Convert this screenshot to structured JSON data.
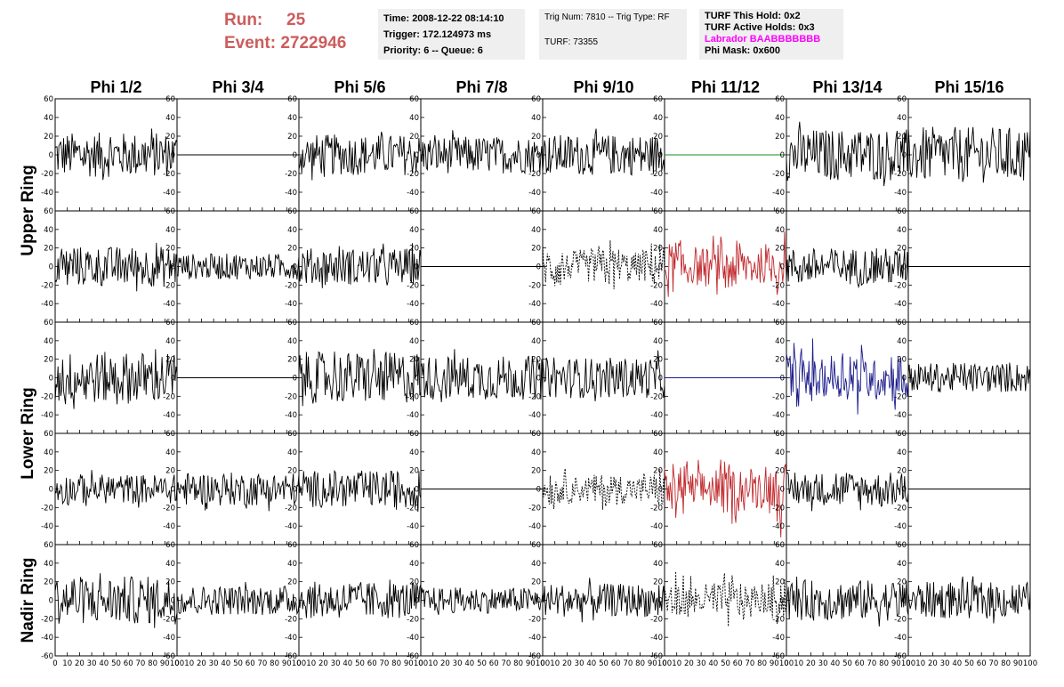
{
  "header": {
    "run_label": "Run:",
    "run_value": "25",
    "event_label": "Event:",
    "event_value": "2722946",
    "time": "Time: 2008-12-22 08:14:10",
    "trigger": "Trigger: 172.124973 ms",
    "priority_queue": "Priority: 6 -- Queue: 6",
    "trig_num_type": "Trig Num: 7810 -- Trig Type: RF",
    "turf": "TURF: 73355",
    "turf_this_hold": "TURF This Hold: 0x2",
    "turf_active_holds": "TURF Active Holds: 0x3",
    "labrador": "Labrador BAABBBBBBB",
    "phi_mask": "Phi Mask: 0x600"
  },
  "colors": {
    "run_text": "#cd5c5c",
    "labrador_text": "#ff00ff",
    "trace_black": "#000000",
    "trace_red": "#c0282c",
    "trace_blue": "#1c1c8c",
    "trace_green": "#1a8a1a"
  },
  "chart_data": {
    "type": "line",
    "columns": [
      "Phi 1/2",
      "Phi 3/4",
      "Phi 5/6",
      "Phi 7/8",
      "Phi 9/10",
      "Phi 11/12",
      "Phi 13/14",
      "Phi 15/16"
    ],
    "ring_labels": [
      {
        "name": "Upper Ring",
        "rows": [
          0,
          1
        ]
      },
      {
        "name": "Lower Ring",
        "rows": [
          2,
          3
        ]
      },
      {
        "name": "Nadir Ring",
        "rows": [
          4
        ]
      }
    ],
    "ylim": [
      -60,
      60
    ],
    "yticks": [
      -60,
      -40,
      -20,
      0,
      20,
      40,
      60
    ],
    "xlim": [
      0,
      100
    ],
    "xticks": [
      0,
      10,
      20,
      30,
      40,
      50,
      60,
      70,
      80,
      90,
      100
    ],
    "panels": [
      [
        {
          "style": "noise",
          "color": "black",
          "amplitude": 24
        },
        {
          "style": "flat",
          "color": "black",
          "amplitude": 0
        },
        {
          "style": "noise",
          "color": "black",
          "amplitude": 22
        },
        {
          "style": "noise",
          "color": "black",
          "amplitude": 20
        },
        {
          "style": "noise",
          "color": "black",
          "amplitude": 22
        },
        {
          "style": "flat",
          "color": "green",
          "amplitude": 0
        },
        {
          "style": "noise",
          "color": "black",
          "amplitude": 28
        },
        {
          "style": "noise",
          "color": "black",
          "amplitude": 30
        }
      ],
      [
        {
          "style": "noise",
          "color": "black",
          "amplitude": 22
        },
        {
          "style": "noise",
          "color": "black",
          "amplitude": 14
        },
        {
          "style": "noise",
          "color": "black",
          "amplitude": 20
        },
        {
          "style": "flat",
          "color": "black",
          "amplitude": 0
        },
        {
          "style": "dashed-pulse",
          "color": "black",
          "amplitude": 32
        },
        {
          "style": "pulse",
          "color": "red",
          "amplitude": 40
        },
        {
          "style": "noise",
          "color": "black",
          "amplitude": 20
        },
        {
          "style": "flat",
          "color": "black",
          "amplitude": 0
        }
      ],
      [
        {
          "style": "noise",
          "color": "black",
          "amplitude": 28
        },
        {
          "style": "flat",
          "color": "black",
          "amplitude": 0
        },
        {
          "style": "noise",
          "color": "black",
          "amplitude": 28
        },
        {
          "style": "noise",
          "color": "black",
          "amplitude": 24
        },
        {
          "style": "noise",
          "color": "black",
          "amplitude": 22
        },
        {
          "style": "flat",
          "color": "blue",
          "amplitude": 0
        },
        {
          "style": "pulse",
          "color": "blue",
          "amplitude": 44
        },
        {
          "style": "noise",
          "color": "black",
          "amplitude": 16
        }
      ],
      [
        {
          "style": "noise",
          "color": "black",
          "amplitude": 16
        },
        {
          "style": "noise",
          "color": "black",
          "amplitude": 18
        },
        {
          "style": "noise",
          "color": "black",
          "amplitude": 20
        },
        {
          "style": "flat",
          "color": "black",
          "amplitude": 0
        },
        {
          "style": "dashed-pulse",
          "color": "black",
          "amplitude": 26
        },
        {
          "style": "pulse",
          "color": "red",
          "amplitude": 40
        },
        {
          "style": "noise",
          "color": "black",
          "amplitude": 18
        },
        {
          "style": "flat",
          "color": "black",
          "amplitude": 0
        }
      ],
      [
        {
          "style": "noise",
          "color": "black",
          "amplitude": 26
        },
        {
          "style": "noise",
          "color": "black",
          "amplitude": 16
        },
        {
          "style": "noise",
          "color": "black",
          "amplitude": 20
        },
        {
          "style": "noise",
          "color": "black",
          "amplitude": 14
        },
        {
          "style": "noise",
          "color": "black",
          "amplitude": 18
        },
        {
          "style": "dashed-pulse",
          "color": "black",
          "amplitude": 32
        },
        {
          "style": "noise",
          "color": "black",
          "amplitude": 22
        },
        {
          "style": "noise",
          "color": "black",
          "amplitude": 20
        }
      ]
    ]
  }
}
